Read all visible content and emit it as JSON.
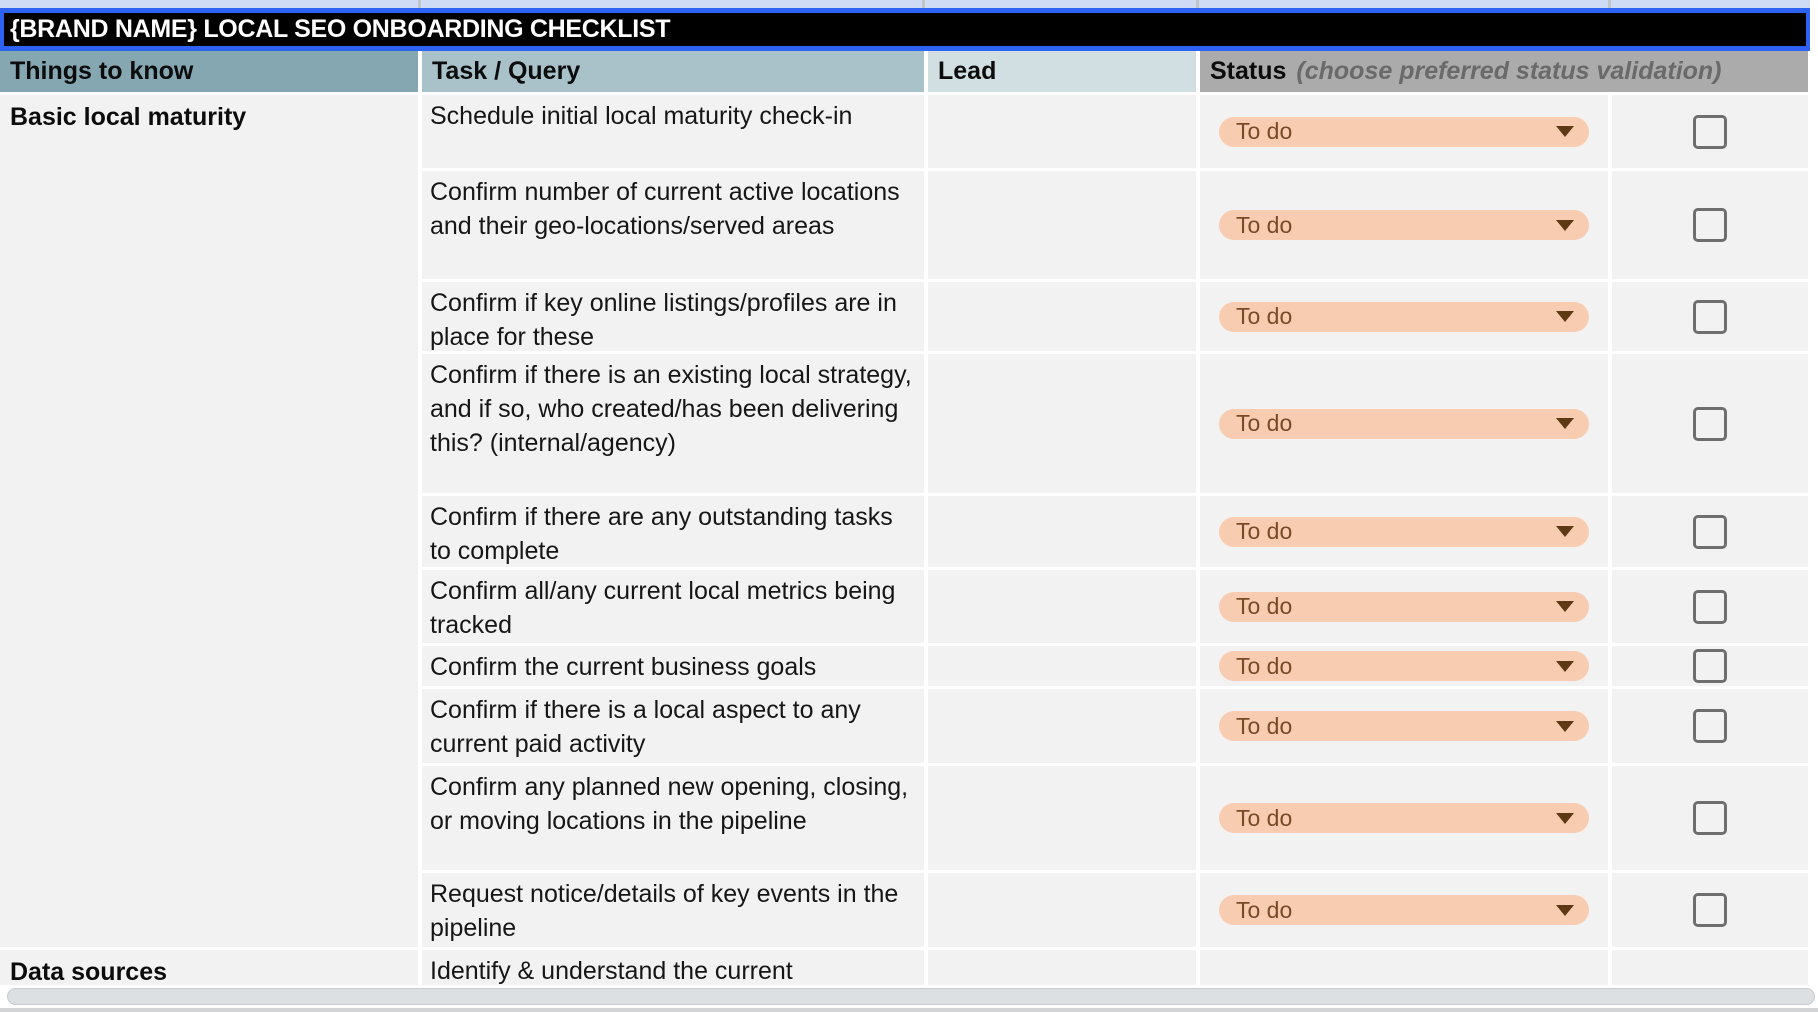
{
  "title": "{BRAND NAME} LOCAL SEO ONBOARDING CHECKLIST",
  "headers": {
    "things_to_know": "Things to know",
    "task_query": "Task / Query",
    "lead": "Lead",
    "status": "Status",
    "status_note": "(choose preferred status validation)"
  },
  "groups": [
    {
      "label": "Basic local maturity",
      "tasks": [
        {
          "task": "Schedule initial local maturity check-in",
          "lead": "",
          "status": "To do",
          "checked": false
        },
        {
          "task": "Confirm number of current active locations and their geo-locations/served areas",
          "lead": "",
          "status": "To do",
          "checked": false
        },
        {
          "task": "Confirm if key online listings/profiles are in place for these",
          "lead": "",
          "status": "To do",
          "checked": false
        },
        {
          "task": "Confirm if there is an existing local strategy, and if so, who created/has been delivering this? (internal/agency)",
          "lead": "",
          "status": "To do",
          "checked": false
        },
        {
          "task": "Confirm if there are any outstanding tasks to complete",
          "lead": "",
          "status": "To do",
          "checked": false
        },
        {
          "task": "Confirm all/any current local metrics being tracked",
          "lead": "",
          "status": "To do",
          "checked": false
        },
        {
          "task": "Confirm the current business goals",
          "lead": "",
          "status": "To do",
          "checked": false
        },
        {
          "task": "Confirm if there is a local aspect to any current paid activity",
          "lead": "",
          "status": "To do",
          "checked": false
        },
        {
          "task": "Confirm any planned new opening, closing, or moving locations in the pipeline",
          "lead": "",
          "status": "To do",
          "checked": false
        },
        {
          "task": "Request notice/details of key events in the pipeline",
          "lead": "",
          "status": "To do",
          "checked": false
        }
      ]
    },
    {
      "label": "Data sources",
      "tasks": [
        {
          "task": "Identify & understand the current",
          "lead": "",
          "status": null,
          "checked": null
        }
      ]
    }
  ],
  "colors": {
    "header_things_bg": "#85a7b1",
    "header_task_bg": "#a9c2c9",
    "header_lead_bg": "#d2dfe2",
    "header_status_bg": "#ababab",
    "status_pill_bg": "#f8ccb0",
    "status_pill_text": "#7a4a28",
    "selection_blue": "#2e62f3",
    "row_bg": "#f2f2f2",
    "title_bar_bg": "#000000"
  }
}
